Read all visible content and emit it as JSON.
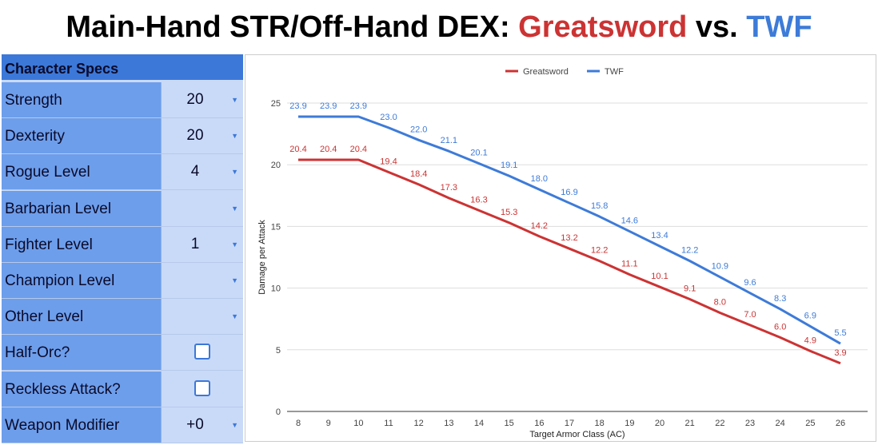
{
  "title": {
    "prefix": "Main-Hand STR/Off-Hand DEX:",
    "greatsword": "Greatsword",
    "vs": "vs.",
    "twf": "TWF"
  },
  "sidebar": {
    "header": "Character Specs",
    "rows": [
      {
        "label": "Strength",
        "value": "20",
        "control": "dropdown"
      },
      {
        "label": "Dexterity",
        "value": "20",
        "control": "dropdown"
      },
      {
        "label": "Rogue Level",
        "value": "4",
        "control": "dropdown"
      },
      {
        "label": "Barbarian Level",
        "value": "",
        "control": "dropdown"
      },
      {
        "label": "Fighter Level",
        "value": "1",
        "control": "dropdown"
      },
      {
        "label": "Champion Level",
        "value": "",
        "control": "dropdown"
      },
      {
        "label": "Other Level",
        "value": "",
        "control": "dropdown"
      },
      {
        "label": "Half-Orc?",
        "value": false,
        "control": "checkbox"
      },
      {
        "label": "Reckless Attack?",
        "value": false,
        "control": "checkbox"
      },
      {
        "label": "Weapon Modifier",
        "value": "+0",
        "control": "dropdown"
      }
    ]
  },
  "colors": {
    "greatsword": "#cc3333",
    "twf": "#3d7bd8",
    "header_bg": "#3c78d8",
    "label_bg": "#6d9eeb",
    "value_bg": "#c9daf8"
  },
  "chart_data": {
    "type": "line",
    "xlabel": "Target Armor Class (AC)",
    "ylabel": "Damage per Attack",
    "x": [
      8,
      9,
      10,
      11,
      12,
      13,
      14,
      15,
      16,
      17,
      18,
      19,
      20,
      21,
      22,
      23,
      24,
      25,
      26
    ],
    "ylim": [
      0,
      25
    ],
    "yticks": [
      0,
      5,
      10,
      15,
      20,
      25
    ],
    "grid": true,
    "legend": "top-center",
    "series": [
      {
        "name": "Greatsword",
        "color": "#cc3333",
        "values": [
          20.4,
          20.4,
          20.4,
          19.4,
          18.4,
          17.3,
          16.3,
          15.3,
          14.2,
          13.2,
          12.2,
          11.1,
          10.1,
          9.1,
          8.0,
          7.0,
          6.0,
          4.9,
          3.9
        ],
        "labels": [
          "20.4",
          "20.4",
          "20.4",
          "19.4",
          "18.4",
          "17.3",
          "16.3",
          "15.3",
          "14.2",
          "13.2",
          "12.2",
          "11.1",
          "10.1",
          "9.1",
          "8.0",
          "7.0",
          "6.0",
          "4.9",
          "3.9"
        ]
      },
      {
        "name": "TWF",
        "color": "#3d7bd8",
        "values": [
          23.9,
          23.9,
          23.9,
          23.0,
          22.0,
          21.1,
          20.1,
          19.1,
          18.0,
          16.9,
          15.8,
          14.6,
          13.4,
          12.2,
          10.9,
          9.6,
          8.3,
          6.9,
          5.5
        ],
        "labels": [
          "23.9",
          "23.9",
          "23.9",
          "23.0",
          "22.0",
          "21.1",
          "20.1",
          "19.1",
          "18.0",
          "16.9",
          "15.8",
          "14.6",
          "13.4",
          "12.2",
          "10.9",
          "9.6",
          "8.3",
          "6.9",
          "5.5"
        ]
      }
    ]
  }
}
